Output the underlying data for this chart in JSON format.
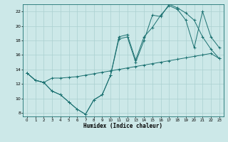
{
  "xlabel": "Humidex (Indice chaleur)",
  "bg_color": "#cce8e8",
  "line_color": "#1a7070",
  "grid_color": "#aad0d0",
  "xlim": [
    -0.5,
    23.5
  ],
  "ylim": [
    7.5,
    23.0
  ],
  "xticks": [
    0,
    1,
    2,
    3,
    4,
    5,
    6,
    7,
    8,
    9,
    10,
    11,
    12,
    13,
    14,
    15,
    16,
    17,
    18,
    19,
    20,
    21,
    22,
    23
  ],
  "yticks": [
    8,
    10,
    12,
    14,
    16,
    18,
    20,
    22
  ],
  "line1_x": [
    0,
    1,
    2,
    3,
    4,
    5,
    6,
    7,
    8,
    9,
    10,
    11,
    12,
    13,
    14,
    15,
    16,
    17,
    18,
    19,
    20,
    21,
    22,
    23
  ],
  "line1_y": [
    13.5,
    12.5,
    12.2,
    12.8,
    12.8,
    12.9,
    13.0,
    13.2,
    13.4,
    13.6,
    13.8,
    14.0,
    14.2,
    14.4,
    14.6,
    14.8,
    15.0,
    15.2,
    15.4,
    15.6,
    15.8,
    16.0,
    16.2,
    15.5
  ],
  "line2_x": [
    0,
    1,
    2,
    3,
    4,
    5,
    6,
    7,
    8,
    9,
    10,
    11,
    12,
    13,
    14,
    15,
    16,
    17,
    18,
    19,
    20,
    21,
    22,
    23
  ],
  "line2_y": [
    13.5,
    12.5,
    12.2,
    11.0,
    10.5,
    9.5,
    8.5,
    7.8,
    9.8,
    10.5,
    13.2,
    18.5,
    18.8,
    15.3,
    18.5,
    19.8,
    21.5,
    22.8,
    22.3,
    20.8,
    17.0,
    22.0,
    18.5,
    17.0
  ],
  "line3_x": [
    0,
    1,
    2,
    3,
    4,
    5,
    6,
    7,
    8,
    9,
    10,
    11,
    12,
    13,
    14,
    15,
    16,
    17,
    18,
    19,
    20,
    21,
    22,
    23
  ],
  "line3_y": [
    13.5,
    12.5,
    12.2,
    11.0,
    10.5,
    9.5,
    8.5,
    7.8,
    9.8,
    10.5,
    13.2,
    18.2,
    18.5,
    15.0,
    18.0,
    21.5,
    21.3,
    23.0,
    22.5,
    21.8,
    20.8,
    18.5,
    16.8,
    15.5
  ]
}
